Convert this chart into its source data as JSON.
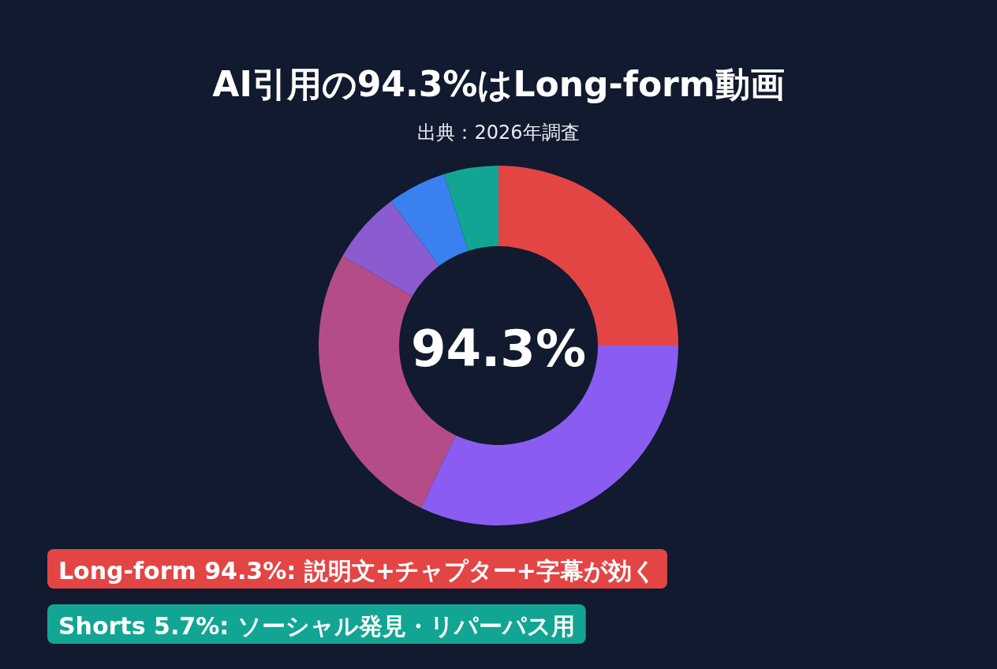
{
  "chart_data": {
    "type": "donut",
    "title": "AI引用の94.3%はLong-form動画",
    "subtitle": "出典：2026年調査",
    "categories": [
      null,
      null,
      null,
      null,
      null,
      null
    ],
    "values": [
      25,
      32.1,
      26.2,
      6.5,
      5.3,
      4.9
    ],
    "colors": [
      "#e34545",
      "#8a5cf2",
      "#b44d87",
      "#8b5ccf",
      "#3b80ef",
      "#12a594"
    ],
    "annotations": [
      "94.3%",
      "Long-form 94.3%: 説明文+チャプター+字幕が効く",
      "Shorts 5.7%: ソーシャル発見・リパーパス用"
    ]
  }
}
